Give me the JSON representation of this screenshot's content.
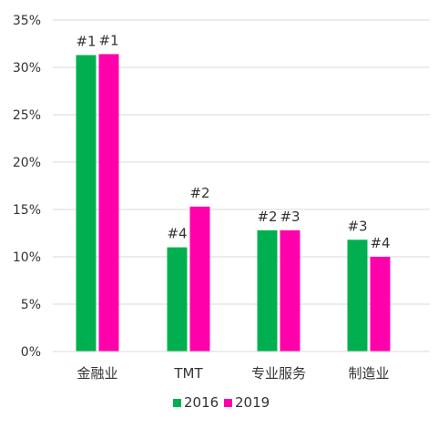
{
  "chart_data": {
    "type": "bar",
    "title": "",
    "xlabel": "",
    "ylabel": "",
    "categories": [
      "金融业",
      "TMT",
      "专业服务",
      "制造业"
    ],
    "series": [
      {
        "name": "2016",
        "color": "#00B050",
        "values": [
          0.313,
          0.11,
          0.128,
          0.118
        ],
        "rank_labels": [
          "#1",
          "#4",
          "#2",
          "#3"
        ]
      },
      {
        "name": "2019",
        "color": "#FF00AA",
        "values": [
          0.314,
          0.153,
          0.128,
          0.1
        ],
        "rank_labels": [
          "#1",
          "#2",
          "#3",
          "#4"
        ]
      }
    ],
    "ylim": [
      0,
      0.35
    ],
    "yticks": [
      "0%",
      "5%",
      "10%",
      "15%",
      "20%",
      "25%",
      "30%",
      "35%"
    ],
    "grid": true,
    "legend_position": "bottom"
  }
}
